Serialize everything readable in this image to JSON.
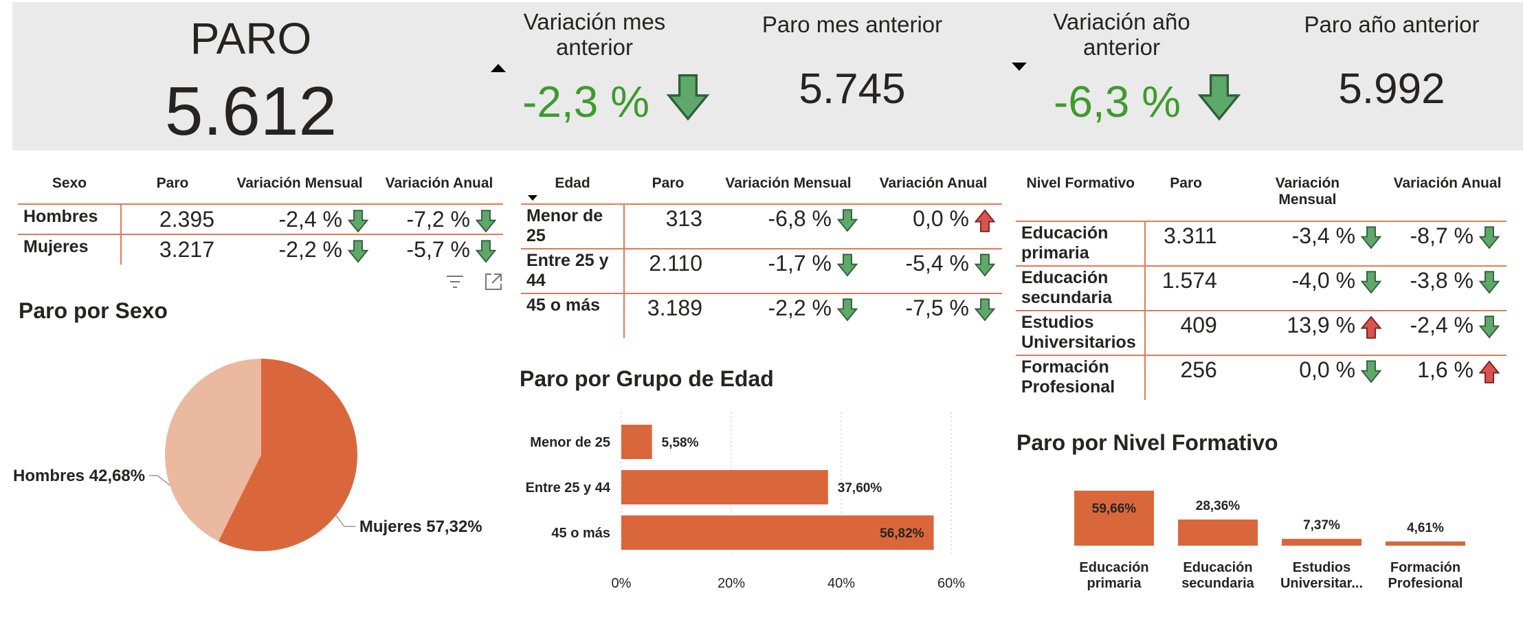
{
  "kpis": {
    "paro": {
      "title": "PARO",
      "value": "5.612"
    },
    "var_mes": {
      "title_line1": "Variación mes",
      "title_line2": "anterior",
      "value": "-2,3 %",
      "direction": "up"
    },
    "mes_anterior": {
      "title": "Paro mes anterior",
      "value": "5.745"
    },
    "var_anio": {
      "title_line1": "Variación año",
      "title_line2": "anterior",
      "value": "-6,3 %",
      "direction": "down"
    },
    "anio_anterior": {
      "title": "Paro año anterior",
      "value": "5.992"
    }
  },
  "colors": {
    "accent": "#d9673b",
    "accent_light": "#ebb8a0",
    "green": "#3f9a2e",
    "arrow_green": "#5fa86b",
    "arrow_red": "#d9534f",
    "band": "#eaeaea"
  },
  "tabla_sexo": {
    "headers": [
      "Sexo",
      "Paro",
      "Variación Mensual",
      "Variación Anual"
    ],
    "rows": [
      {
        "label": "Hombres",
        "paro": "2.395",
        "mensual": "-2,4 %",
        "mensual_trend": "down",
        "anual": "-7,2 %",
        "anual_trend": "down"
      },
      {
        "label": "Mujeres",
        "paro": "3.217",
        "mensual": "-2,2 %",
        "mensual_trend": "down",
        "anual": "-5,7 %",
        "anual_trend": "down"
      }
    ]
  },
  "tabla_edad": {
    "headers": [
      "Edad",
      "Paro",
      "Variación Mensual",
      "Variación Anual"
    ],
    "rows": [
      {
        "label": "Menor de 25",
        "paro": "313",
        "mensual": "-6,8 %",
        "mensual_trend": "down",
        "anual": "0,0 %",
        "anual_trend": "up"
      },
      {
        "label": "Entre 25 y 44",
        "paro": "2.110",
        "mensual": "-1,7 %",
        "mensual_trend": "down",
        "anual": "-5,4 %",
        "anual_trend": "down"
      },
      {
        "label": "45 o más",
        "paro": "3.189",
        "mensual": "-2,2 %",
        "mensual_trend": "down",
        "anual": "-7,5 %",
        "anual_trend": "down"
      }
    ]
  },
  "tabla_nivel": {
    "headers": [
      "Nivel Formativo",
      "Paro",
      "Variación Mensual",
      "Variación Anual"
    ],
    "rows": [
      {
        "label": "Educación primaria",
        "paro": "3.311",
        "mensual": "-3,4 %",
        "mensual_trend": "down",
        "anual": "-8,7 %",
        "anual_trend": "down"
      },
      {
        "label": "Educación secundaria",
        "paro": "1.574",
        "mensual": "-4,0 %",
        "mensual_trend": "down",
        "anual": "-3,8 %",
        "anual_trend": "down"
      },
      {
        "label": "Estudios Universitarios",
        "paro": "409",
        "mensual": "13,9 %",
        "mensual_trend": "up",
        "anual": "-2,4 %",
        "anual_trend": "down"
      },
      {
        "label": "Formación Profesional",
        "paro": "256",
        "mensual": "0,0 %",
        "mensual_trend": "down",
        "anual": "1,6 %",
        "anual_trend": "up"
      }
    ]
  },
  "toolbar_icons": [
    "filter-icon",
    "focus-mode-icon"
  ],
  "chart_data": [
    {
      "type": "pie",
      "title": "Paro por Sexo",
      "slices": [
        {
          "name": "Hombres",
          "value": 42.68,
          "label": "Hombres 42,68%"
        },
        {
          "name": "Mujeres",
          "value": 57.32,
          "label": "Mujeres 57,32%"
        }
      ]
    },
    {
      "type": "bar",
      "orientation": "horizontal",
      "title": "Paro por Grupo de Edad",
      "categories": [
        "Menor de 25",
        "Entre 25 y 44",
        "45 o más"
      ],
      "values": [
        5.58,
        37.6,
        56.82
      ],
      "value_labels": [
        "5,58%",
        "37,60%",
        "56,82%"
      ],
      "xlim": [
        0,
        60
      ],
      "xticks": [
        "0%",
        "20%",
        "40%",
        "60%"
      ],
      "grid": true
    },
    {
      "type": "bar",
      "title": "Paro por Nivel Formativo",
      "categories": [
        "Educación primaria",
        "Educación secundaria",
        "Estudios Universitar...",
        "Formación Profesional"
      ],
      "values": [
        59.66,
        28.36,
        7.37,
        4.61
      ],
      "value_labels": [
        "59,66%",
        "28,36%",
        "7,37%",
        "4,61%"
      ]
    }
  ]
}
